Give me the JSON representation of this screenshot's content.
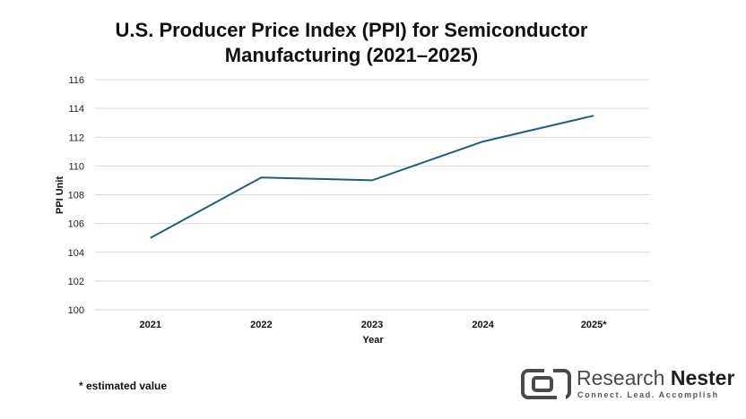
{
  "chart_data": {
    "type": "line",
    "title": "U.S. Producer Price Index (PPI) for Semiconductor Manufacturing (2021–2025)",
    "title_lines": [
      "U.S. Producer Price Index (PPI) for Semiconductor",
      "Manufacturing (2021–2025)"
    ],
    "xlabel": "Year",
    "ylabel": "PPI Unit",
    "categories": [
      "2021",
      "2022",
      "2023",
      "2024",
      "2025*"
    ],
    "values": [
      105.0,
      109.2,
      109.0,
      111.7,
      113.5
    ],
    "ylim": [
      100,
      116
    ],
    "yticks": [
      100,
      102,
      104,
      106,
      108,
      110,
      112,
      114,
      116
    ],
    "grid": true,
    "line_color": "#1f5f7a",
    "grid_color": "#d9d9d9"
  },
  "footnote": "* estimated value",
  "brand": {
    "name_part1": "Research",
    "name_part2": "Nester",
    "tagline": "Connect. Lead. Accomplish",
    "mark_icon": "research-nester-logo-icon",
    "color": "#4a4a4a"
  }
}
